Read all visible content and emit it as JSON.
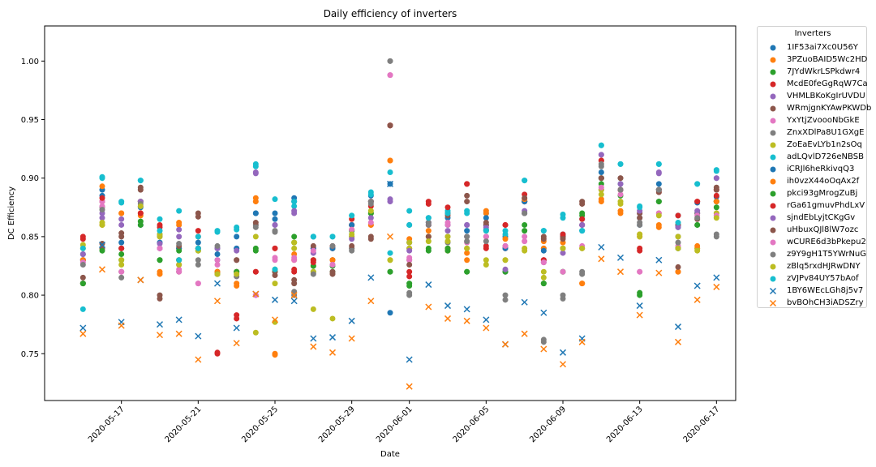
{
  "chart_data": {
    "type": "scatter",
    "title": "Daily efficiency of inverters",
    "xlabel": "Date",
    "ylabel": "DC Efficiency",
    "xlim": [
      "2020-05-13",
      "2020-06-18"
    ],
    "ylim": [
      0.71,
      1.03
    ],
    "xticks": [
      "2020-05-17",
      "2020-05-21",
      "2020-05-25",
      "2020-05-29",
      "2020-06-01",
      "2020-06-05",
      "2020-06-09",
      "2020-06-13",
      "2020-06-17"
    ],
    "yticks": [
      0.75,
      0.8,
      0.85,
      0.9,
      0.95,
      1.0
    ],
    "ytick_labels": [
      "0.75",
      "0.80",
      "0.85",
      "0.90",
      "0.95",
      "1.00"
    ],
    "grid": false,
    "legend_title": "Inverters",
    "legend_position": "outside-right",
    "dates": [
      "2020-05-15",
      "2020-05-16",
      "2020-05-17",
      "2020-05-18",
      "2020-05-19",
      "2020-05-20",
      "2020-05-21",
      "2020-05-22",
      "2020-05-23",
      "2020-05-24",
      "2020-05-25",
      "2020-05-26",
      "2020-05-27",
      "2020-05-28",
      "2020-05-29",
      "2020-05-30",
      "2020-05-31",
      "2020-06-01",
      "2020-06-02",
      "2020-06-03",
      "2020-06-04",
      "2020-06-05",
      "2020-06-06",
      "2020-06-07",
      "2020-06-08",
      "2020-06-09",
      "2020-06-10",
      "2020-06-11",
      "2020-06-12",
      "2020-06-13",
      "2020-06-14",
      "2020-06-15",
      "2020-06-16",
      "2020-06-17"
    ],
    "series": [
      {
        "name": "1IF53ai7Xc0U56Y",
        "color": "#1f77b4",
        "marker": "o",
        "values": [
          0.83,
          0.89,
          0.84,
          0.86,
          0.84,
          0.83,
          0.84,
          0.83,
          0.85,
          0.87,
          0.87,
          0.88,
          0.85,
          0.84,
          0.86,
          0.88,
          0.785,
          0.86,
          0.86,
          0.86,
          0.85,
          0.87,
          0.85,
          0.88,
          0.84,
          0.85,
          0.86,
          0.9,
          0.89,
          0.86,
          0.89,
          0.86,
          0.87,
          0.88
        ]
      },
      {
        "name": "3PZuoBAID5Wc2HD",
        "color": "#ff7f0e",
        "marker": "o",
        "values": [
          0.83,
          0.86,
          0.87,
          0.87,
          0.82,
          0.86,
          0.84,
          0.82,
          0.81,
          0.88,
          0.75,
          0.83,
          0.83,
          0.83,
          0.86,
          0.86,
          0.915,
          0.84,
          0.86,
          0.84,
          0.83,
          0.87,
          0.84,
          0.88,
          0.84,
          0.84,
          0.81,
          0.88,
          0.87,
          0.85,
          0.86,
          0.82,
          0.84,
          0.88
        ]
      },
      {
        "name": "7JYdWkrLSPkdwr4",
        "color": "#2ca02c",
        "marker": "o",
        "values": [
          0.81,
          0.84,
          0.83,
          0.86,
          0.83,
          0.84,
          0.84,
          0.82,
          0.82,
          0.84,
          0.82,
          0.85,
          0.83,
          0.82,
          0.86,
          0.87,
          0.82,
          0.81,
          0.84,
          0.84,
          0.82,
          0.86,
          0.82,
          0.86,
          0.81,
          0.82,
          0.87,
          0.9,
          0.89,
          0.8,
          0.88,
          0.84,
          0.86,
          0.88
        ]
      },
      {
        "name": "McdE0feGgRqW7Ca",
        "color": "#d62728",
        "marker": "o",
        "values": [
          0.85,
          0.88,
          0.84,
          0.87,
          0.86,
          0.83,
          0.85,
          0.75,
          0.78,
          0.82,
          0.84,
          0.82,
          0.83,
          0.84,
          0.86,
          0.88,
          0.945,
          0.82,
          0.88,
          0.87,
          0.895,
          0.84,
          0.86,
          0.88,
          0.83,
          0.85,
          0.86,
          0.915,
          0.89,
          0.84,
          0.89,
          0.86,
          0.88,
          0.89
        ]
      },
      {
        "name": "VHMLBKoKgIrUVDU",
        "color": "#9467bd",
        "marker": "o",
        "values": [
          0.83,
          0.87,
          0.86,
          0.88,
          0.84,
          0.85,
          0.84,
          0.84,
          0.84,
          0.905,
          0.86,
          0.87,
          0.84,
          0.83,
          0.85,
          0.87,
          0.88,
          0.84,
          0.86,
          0.86,
          0.86,
          0.86,
          0.82,
          0.87,
          0.83,
          0.84,
          0.86,
          0.92,
          0.89,
          0.87,
          0.905,
          0.86,
          0.87,
          0.9
        ]
      },
      {
        "name": "WRmjgnKYAwPKWDb",
        "color": "#8c564b",
        "marker": "o",
        "values": [
          0.81,
          0.84,
          0.85,
          0.89,
          0.8,
          0.82,
          0.87,
          0.82,
          0.83,
          0.86,
          0.82,
          0.81,
          0.84,
          0.82,
          0.84,
          0.85,
          0.945,
          0.83,
          0.85,
          0.87,
          0.88,
          0.86,
          0.84,
          0.88,
          0.85,
          0.85,
          0.88,
          0.9,
          0.9,
          0.87,
          0.89,
          0.86,
          0.87,
          0.89
        ]
      },
      {
        "name": "YxYtjZvoooNbGkE",
        "color": "#e377c2",
        "marker": "o",
        "values": [
          0.83,
          0.88,
          0.82,
          0.88,
          0.84,
          0.82,
          0.81,
          0.83,
          0.82,
          0.8,
          0.83,
          0.83,
          0.84,
          0.83,
          0.86,
          0.86,
          0.988,
          0.83,
          0.86,
          0.86,
          0.85,
          0.85,
          0.84,
          0.85,
          0.83,
          0.82,
          0.84,
          0.89,
          0.89,
          0.82,
          0.87,
          0.84,
          0.87,
          0.87
        ]
      },
      {
        "name": "ZnxXDlPa8U1GXgE",
        "color": "#7f7f7f",
        "marker": "o",
        "values": [
          0.83,
          0.875,
          0.82,
          0.88,
          0.85,
          0.84,
          0.83,
          0.84,
          0.82,
          0.86,
          0.855,
          0.8,
          0.82,
          0.84,
          0.84,
          0.88,
          1.0,
          0.8,
          0.86,
          0.85,
          0.85,
          0.85,
          0.8,
          0.87,
          0.76,
          0.8,
          0.82,
          0.91,
          0.89,
          0.86,
          0.89,
          0.85,
          0.87,
          0.85
        ]
      },
      {
        "name": "ZoEaEvLYb1n2sOq",
        "color": "#bcbd22",
        "marker": "o",
        "values": [
          0.84,
          0.86,
          0.83,
          0.88,
          0.85,
          0.83,
          0.84,
          0.82,
          0.82,
          0.85,
          0.81,
          0.84,
          0.82,
          0.83,
          0.85,
          0.87,
          0.83,
          0.84,
          0.85,
          0.85,
          0.84,
          0.83,
          0.83,
          0.84,
          0.82,
          0.84,
          0.84,
          0.89,
          0.88,
          0.85,
          0.87,
          0.85,
          0.84,
          0.87
        ]
      },
      {
        "name": "adLQvlD726eNBSB",
        "color": "#17becf",
        "marker": "o",
        "values": [
          0.788,
          0.9,
          0.88,
          0.898,
          0.865,
          0.872,
          0.85,
          0.855,
          0.858,
          0.912,
          0.882,
          0.876,
          0.85,
          0.85,
          0.868,
          0.888,
          0.905,
          0.872,
          0.862,
          0.872,
          0.872,
          0.856,
          0.852,
          0.898,
          0.855,
          0.869,
          0.865,
          0.928,
          0.912,
          0.876,
          0.912,
          0.868,
          0.895,
          0.907
        ]
      },
      {
        "name": "iCRJl6heRkivqQ3",
        "color": "#1f77b4",
        "marker": "o",
        "values": [
          0.835,
          0.885,
          0.845,
          0.875,
          0.845,
          0.84,
          0.845,
          0.835,
          0.84,
          0.87,
          0.865,
          0.883,
          0.84,
          0.84,
          0.86,
          0.885,
          0.895,
          0.845,
          0.866,
          0.866,
          0.855,
          0.866,
          0.84,
          0.88,
          0.838,
          0.852,
          0.855,
          0.905,
          0.895,
          0.866,
          0.895,
          0.858,
          0.879,
          0.884
        ]
      },
      {
        "name": "ih0vzX44oOqAx2f",
        "color": "#ff7f0e",
        "marker": "o",
        "values": [
          0.83,
          0.893,
          0.87,
          0.868,
          0.818,
          0.862,
          0.84,
          0.82,
          0.808,
          0.883,
          0.749,
          0.835,
          0.825,
          0.83,
          0.856,
          0.86,
          0.915,
          0.848,
          0.855,
          0.838,
          0.836,
          0.872,
          0.848,
          0.882,
          0.846,
          0.845,
          0.81,
          0.882,
          0.872,
          0.852,
          0.858,
          0.82,
          0.842,
          0.88
        ]
      },
      {
        "name": "pkci93gMrogZuBj",
        "color": "#2ca02c",
        "marker": "o",
        "values": [
          0.81,
          0.838,
          0.835,
          0.863,
          0.83,
          0.838,
          0.838,
          0.818,
          0.82,
          0.838,
          0.822,
          0.845,
          0.825,
          0.825,
          0.855,
          0.87,
          0.82,
          0.808,
          0.838,
          0.838,
          0.82,
          0.855,
          0.82,
          0.855,
          0.81,
          0.82,
          0.868,
          0.895,
          0.885,
          0.802,
          0.88,
          0.84,
          0.86,
          0.875
        ]
      },
      {
        "name": "rGa61gmuvPhdLxV",
        "color": "#d62728",
        "marker": "o",
        "values": [
          0.848,
          0.883,
          0.84,
          0.87,
          0.858,
          0.826,
          0.855,
          0.751,
          0.783,
          0.82,
          0.84,
          0.822,
          0.828,
          0.842,
          0.865,
          0.876,
          0.945,
          0.816,
          0.878,
          0.875,
          0.895,
          0.842,
          0.86,
          0.886,
          0.83,
          0.852,
          0.865,
          0.915,
          0.89,
          0.838,
          0.888,
          0.868,
          0.88,
          0.885
        ]
      },
      {
        "name": "sjndEbLyjtCKgGv",
        "color": "#9467bd",
        "marker": "o",
        "values": [
          0.835,
          0.866,
          0.865,
          0.88,
          0.844,
          0.856,
          0.84,
          0.84,
          0.838,
          0.904,
          0.86,
          0.872,
          0.836,
          0.826,
          0.848,
          0.866,
          0.882,
          0.838,
          0.862,
          0.855,
          0.86,
          0.858,
          0.822,
          0.872,
          0.828,
          0.836,
          0.86,
          0.92,
          0.895,
          0.872,
          0.904,
          0.858,
          0.872,
          0.9
        ]
      },
      {
        "name": "uHbuxQJl8lW7ozc",
        "color": "#8c564b",
        "marker": "o",
        "values": [
          0.815,
          0.844,
          0.853,
          0.892,
          0.797,
          0.842,
          0.867,
          0.818,
          0.83,
          0.862,
          0.817,
          0.813,
          0.842,
          0.818,
          0.842,
          0.848,
          0.945,
          0.826,
          0.85,
          0.868,
          0.885,
          0.862,
          0.842,
          0.883,
          0.848,
          0.848,
          0.878,
          0.9,
          0.9,
          0.866,
          0.888,
          0.824,
          0.865,
          0.892
        ]
      },
      {
        "name": "wCURE6d3bPkepu2",
        "color": "#e377c2",
        "marker": "o",
        "values": [
          0.828,
          0.876,
          0.82,
          0.876,
          0.84,
          0.822,
          0.81,
          0.826,
          0.816,
          0.8,
          0.832,
          0.832,
          0.838,
          0.826,
          0.856,
          0.862,
          0.988,
          0.832,
          0.862,
          0.862,
          0.845,
          0.85,
          0.842,
          0.846,
          0.828,
          0.82,
          0.842,
          0.892,
          0.886,
          0.82,
          0.87,
          0.842,
          0.868,
          0.868
        ]
      },
      {
        "name": "z9Y9gH1T5YWrNuG",
        "color": "#7f7f7f",
        "marker": "o",
        "values": [
          0.826,
          0.873,
          0.815,
          0.878,
          0.852,
          0.844,
          0.826,
          0.842,
          0.816,
          0.858,
          0.854,
          0.803,
          0.818,
          0.842,
          0.838,
          0.878,
          1.0,
          0.802,
          0.862,
          0.845,
          0.846,
          0.846,
          0.796,
          0.87,
          0.762,
          0.797,
          0.818,
          0.912,
          0.89,
          0.862,
          0.89,
          0.845,
          0.866,
          0.852
        ]
      },
      {
        "name": "zBlq5rxdHJRwDNY",
        "color": "#bcbd22",
        "marker": "o",
        "values": [
          0.843,
          0.862,
          0.826,
          0.876,
          0.852,
          0.826,
          0.838,
          0.818,
          0.818,
          0.768,
          0.777,
          0.845,
          0.788,
          0.78,
          0.852,
          0.872,
          0.83,
          0.845,
          0.846,
          0.846,
          0.84,
          0.826,
          0.83,
          0.838,
          0.815,
          0.84,
          0.84,
          0.886,
          0.878,
          0.852,
          0.868,
          0.84,
          0.838,
          0.866
        ]
      },
      {
        "name": "zVJPv84UY57bAof",
        "color": "#17becf",
        "marker": "o",
        "values": [
          0.84,
          0.901,
          0.879,
          0.898,
          0.855,
          0.83,
          0.84,
          0.854,
          0.856,
          0.91,
          0.822,
          0.88,
          0.85,
          0.85,
          0.868,
          0.886,
          0.836,
          0.86,
          0.866,
          0.87,
          0.87,
          0.855,
          0.855,
          0.898,
          0.855,
          0.866,
          0.855,
          0.928,
          0.912,
          0.875,
          0.912,
          0.862,
          0.895,
          0.906
        ]
      },
      {
        "name": "1BY6WEcLGh8j5v7",
        "color": "#1f77b4",
        "marker": "x",
        "values": [
          0.772,
          0.843,
          0.777,
          0.813,
          0.775,
          0.779,
          0.765,
          0.81,
          0.772,
          0.801,
          0.796,
          0.795,
          0.763,
          0.764,
          0.778,
          0.815,
          0.895,
          0.745,
          0.809,
          0.791,
          0.788,
          0.779,
          0.758,
          0.794,
          0.785,
          0.751,
          0.763,
          0.841,
          0.832,
          0.791,
          0.83,
          0.773,
          0.808,
          0.815
        ]
      },
      {
        "name": "bvBOhCH3iADSZry",
        "color": "#ff7f0e",
        "marker": "x",
        "values": [
          0.767,
          0.822,
          0.774,
          0.813,
          0.766,
          0.767,
          0.745,
          0.795,
          0.759,
          0.801,
          0.779,
          0.8,
          0.756,
          0.751,
          0.763,
          0.795,
          0.85,
          0.722,
          0.79,
          0.78,
          0.778,
          0.772,
          0.758,
          0.767,
          0.754,
          0.741,
          0.76,
          0.831,
          0.82,
          0.783,
          0.819,
          0.76,
          0.796,
          0.807
        ]
      }
    ]
  }
}
